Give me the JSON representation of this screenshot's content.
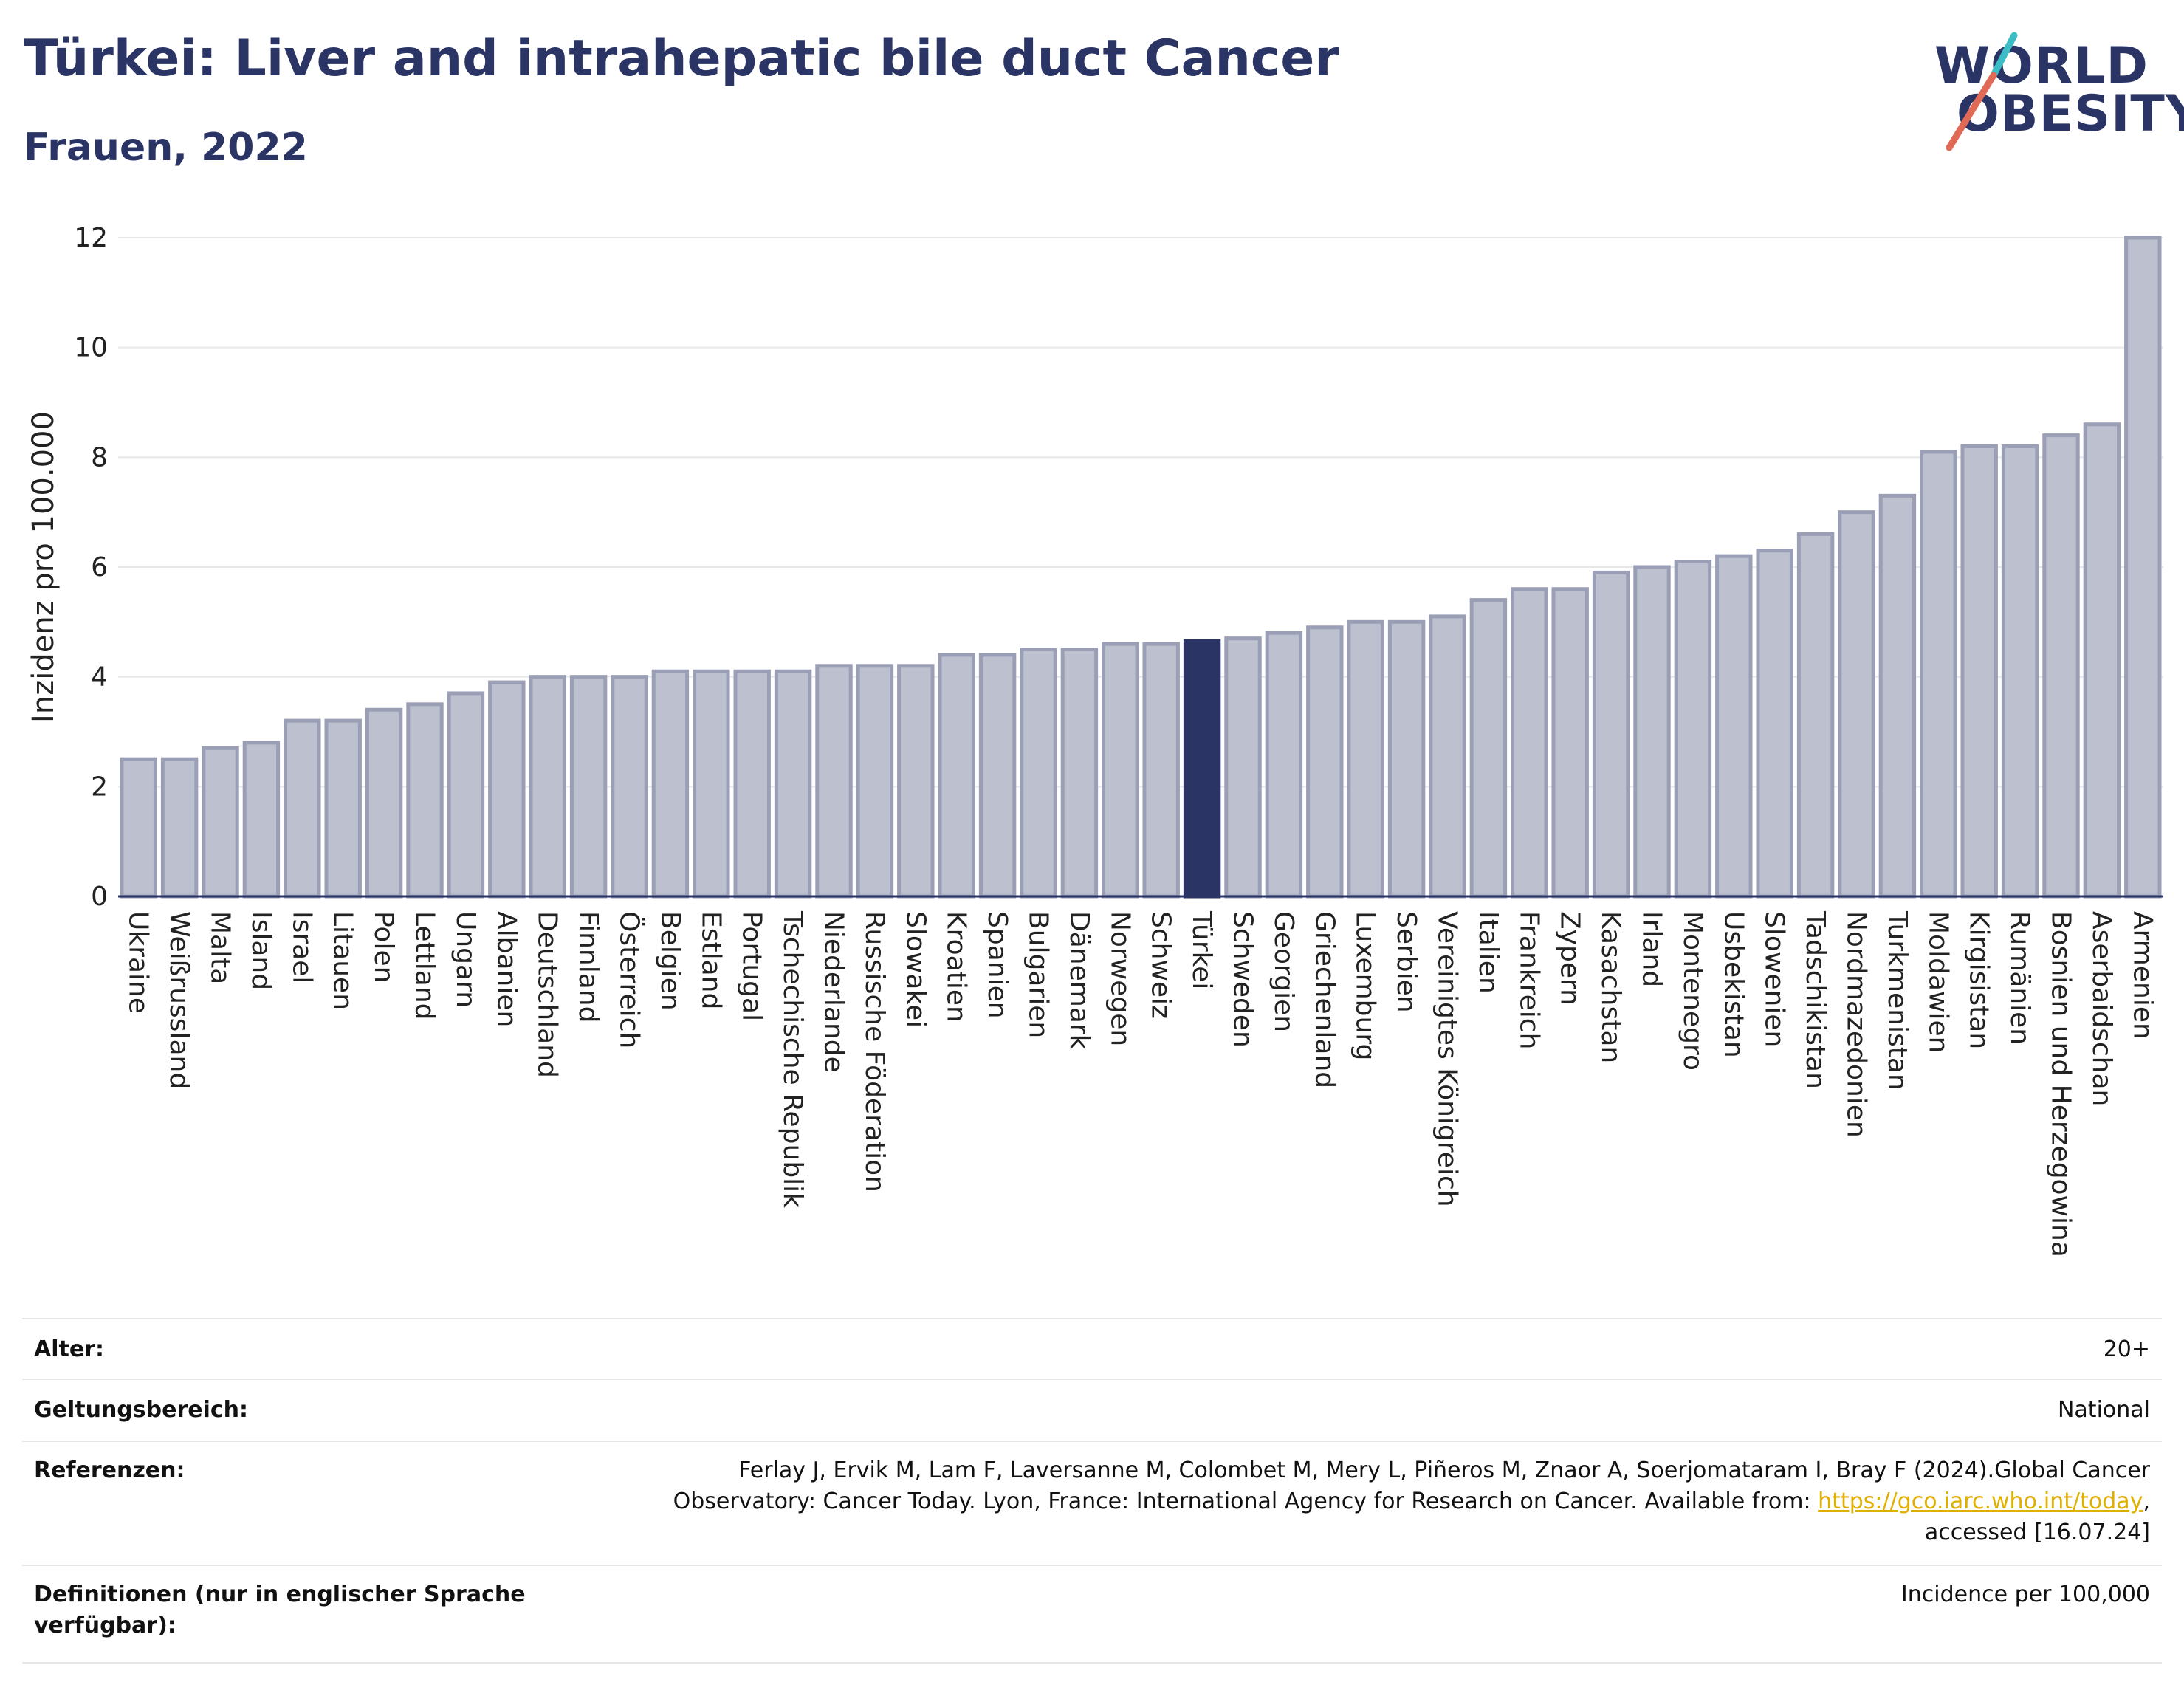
{
  "header": {
    "title": "Türkei: Liver and intrahepatic bile duct Cancer",
    "subtitle": "Frauen, 2022"
  },
  "logo": {
    "line1": "WORLD",
    "line2": "OBESITY",
    "accent_colors": [
      "#3cbcc4",
      "#e06a55"
    ]
  },
  "chart_data": {
    "type": "bar",
    "ylabel": "Inzidenz pro 100.000",
    "ylim": [
      0,
      12.5
    ],
    "yticks": [
      0,
      2,
      4,
      6,
      8,
      10,
      12
    ],
    "grid": true,
    "highlight": "Türkei",
    "colors": {
      "bar": "#bcc0cf",
      "bar_border": "#9a9fb5",
      "highlight": "#2b3565",
      "grid": "#e8e8e8"
    },
    "categories": [
      "Ukraine",
      "Weißrussland",
      "Malta",
      "Island",
      "Israel",
      "Litauen",
      "Polen",
      "Lettland",
      "Ungarn",
      "Albanien",
      "Deutschland",
      "Finnland",
      "Österreich",
      "Belgien",
      "Estland",
      "Portugal",
      "Tschechische Republik",
      "Niederlande",
      "Russische Föderation",
      "Slowakei",
      "Kroatien",
      "Spanien",
      "Bulgarien",
      "Dänemark",
      "Norwegen",
      "Schweiz",
      "Türkei",
      "Schweden",
      "Georgien",
      "Griechenland",
      "Luxemburg",
      "Serbien",
      "Vereinigtes Königreich",
      "Italien",
      "Frankreich",
      "Zypern",
      "Kasachstan",
      "Irland",
      "Montenegro",
      "Usbekistan",
      "Slowenien",
      "Tadschikistan",
      "Nordmazedonien",
      "Turkmenistan",
      "Moldawien",
      "Kirgisistan",
      "Rumänien",
      "Bosnien und Herzegowina",
      "Aserbaidschan",
      "Armenien"
    ],
    "values": [
      2.5,
      2.5,
      2.7,
      2.8,
      3.2,
      3.2,
      3.4,
      3.5,
      3.7,
      3.9,
      4.0,
      4.0,
      4.0,
      4.1,
      4.1,
      4.1,
      4.1,
      4.2,
      4.2,
      4.2,
      4.4,
      4.4,
      4.5,
      4.5,
      4.6,
      4.6,
      4.65,
      4.7,
      4.8,
      4.9,
      5.0,
      5.0,
      5.1,
      5.4,
      5.6,
      5.6,
      5.9,
      6.0,
      6.1,
      6.2,
      6.3,
      6.6,
      7.0,
      7.3,
      8.1,
      8.2,
      8.2,
      8.4,
      8.6,
      12.0
    ]
  },
  "meta": {
    "age_label": "Alter:",
    "age_value": "20+",
    "scope_label": "Geltungsbereich:",
    "scope_value": "National",
    "refs_label": "Referenzen:",
    "refs_line1": "Ferlay J, Ervik M, Lam F, Laversanne M, Colombet M, Mery L, Piñeros M, Znaor A, Soerjomataram I, Bray F (2024).Global Cancer",
    "refs_line2": "Observatory: Cancer Today. Lyon, France: International Agency for Research on Cancer. Available from:",
    "refs_link": "https://gco.iarc.who.int/today",
    "refs_line2_end": ",",
    "refs_line3": "accessed [16.07.24]",
    "defs_label_1": "Definitionen (nur in englischer Sprache",
    "defs_label_2": "verfügbar):",
    "defs_value": "Incidence per 100,000"
  }
}
